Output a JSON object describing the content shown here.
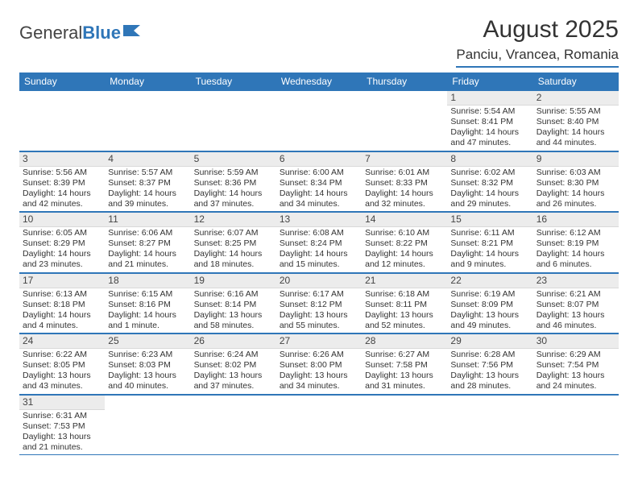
{
  "brand": {
    "part1": "General",
    "part2": "Blue"
  },
  "title": "August 2025",
  "location": "Panciu, Vrancea, Romania",
  "colors": {
    "accent": "#2f76b8",
    "daynum_bg": "#ececec",
    "text": "#333333"
  },
  "dow": [
    "Sunday",
    "Monday",
    "Tuesday",
    "Wednesday",
    "Thursday",
    "Friday",
    "Saturday"
  ],
  "weeks": [
    [
      null,
      null,
      null,
      null,
      null,
      {
        "n": "1",
        "sr": "Sunrise: 5:54 AM",
        "ss": "Sunset: 8:41 PM",
        "d1": "Daylight: 14 hours",
        "d2": "and 47 minutes."
      },
      {
        "n": "2",
        "sr": "Sunrise: 5:55 AM",
        "ss": "Sunset: 8:40 PM",
        "d1": "Daylight: 14 hours",
        "d2": "and 44 minutes."
      }
    ],
    [
      {
        "n": "3",
        "sr": "Sunrise: 5:56 AM",
        "ss": "Sunset: 8:39 PM",
        "d1": "Daylight: 14 hours",
        "d2": "and 42 minutes."
      },
      {
        "n": "4",
        "sr": "Sunrise: 5:57 AM",
        "ss": "Sunset: 8:37 PM",
        "d1": "Daylight: 14 hours",
        "d2": "and 39 minutes."
      },
      {
        "n": "5",
        "sr": "Sunrise: 5:59 AM",
        "ss": "Sunset: 8:36 PM",
        "d1": "Daylight: 14 hours",
        "d2": "and 37 minutes."
      },
      {
        "n": "6",
        "sr": "Sunrise: 6:00 AM",
        "ss": "Sunset: 8:34 PM",
        "d1": "Daylight: 14 hours",
        "d2": "and 34 minutes."
      },
      {
        "n": "7",
        "sr": "Sunrise: 6:01 AM",
        "ss": "Sunset: 8:33 PM",
        "d1": "Daylight: 14 hours",
        "d2": "and 32 minutes."
      },
      {
        "n": "8",
        "sr": "Sunrise: 6:02 AM",
        "ss": "Sunset: 8:32 PM",
        "d1": "Daylight: 14 hours",
        "d2": "and 29 minutes."
      },
      {
        "n": "9",
        "sr": "Sunrise: 6:03 AM",
        "ss": "Sunset: 8:30 PM",
        "d1": "Daylight: 14 hours",
        "d2": "and 26 minutes."
      }
    ],
    [
      {
        "n": "10",
        "sr": "Sunrise: 6:05 AM",
        "ss": "Sunset: 8:29 PM",
        "d1": "Daylight: 14 hours",
        "d2": "and 23 minutes."
      },
      {
        "n": "11",
        "sr": "Sunrise: 6:06 AM",
        "ss": "Sunset: 8:27 PM",
        "d1": "Daylight: 14 hours",
        "d2": "and 21 minutes."
      },
      {
        "n": "12",
        "sr": "Sunrise: 6:07 AM",
        "ss": "Sunset: 8:25 PM",
        "d1": "Daylight: 14 hours",
        "d2": "and 18 minutes."
      },
      {
        "n": "13",
        "sr": "Sunrise: 6:08 AM",
        "ss": "Sunset: 8:24 PM",
        "d1": "Daylight: 14 hours",
        "d2": "and 15 minutes."
      },
      {
        "n": "14",
        "sr": "Sunrise: 6:10 AM",
        "ss": "Sunset: 8:22 PM",
        "d1": "Daylight: 14 hours",
        "d2": "and 12 minutes."
      },
      {
        "n": "15",
        "sr": "Sunrise: 6:11 AM",
        "ss": "Sunset: 8:21 PM",
        "d1": "Daylight: 14 hours",
        "d2": "and 9 minutes."
      },
      {
        "n": "16",
        "sr": "Sunrise: 6:12 AM",
        "ss": "Sunset: 8:19 PM",
        "d1": "Daylight: 14 hours",
        "d2": "and 6 minutes."
      }
    ],
    [
      {
        "n": "17",
        "sr": "Sunrise: 6:13 AM",
        "ss": "Sunset: 8:18 PM",
        "d1": "Daylight: 14 hours",
        "d2": "and 4 minutes."
      },
      {
        "n": "18",
        "sr": "Sunrise: 6:15 AM",
        "ss": "Sunset: 8:16 PM",
        "d1": "Daylight: 14 hours",
        "d2": "and 1 minute."
      },
      {
        "n": "19",
        "sr": "Sunrise: 6:16 AM",
        "ss": "Sunset: 8:14 PM",
        "d1": "Daylight: 13 hours",
        "d2": "and 58 minutes."
      },
      {
        "n": "20",
        "sr": "Sunrise: 6:17 AM",
        "ss": "Sunset: 8:12 PM",
        "d1": "Daylight: 13 hours",
        "d2": "and 55 minutes."
      },
      {
        "n": "21",
        "sr": "Sunrise: 6:18 AM",
        "ss": "Sunset: 8:11 PM",
        "d1": "Daylight: 13 hours",
        "d2": "and 52 minutes."
      },
      {
        "n": "22",
        "sr": "Sunrise: 6:19 AM",
        "ss": "Sunset: 8:09 PM",
        "d1": "Daylight: 13 hours",
        "d2": "and 49 minutes."
      },
      {
        "n": "23",
        "sr": "Sunrise: 6:21 AM",
        "ss": "Sunset: 8:07 PM",
        "d1": "Daylight: 13 hours",
        "d2": "and 46 minutes."
      }
    ],
    [
      {
        "n": "24",
        "sr": "Sunrise: 6:22 AM",
        "ss": "Sunset: 8:05 PM",
        "d1": "Daylight: 13 hours",
        "d2": "and 43 minutes."
      },
      {
        "n": "25",
        "sr": "Sunrise: 6:23 AM",
        "ss": "Sunset: 8:03 PM",
        "d1": "Daylight: 13 hours",
        "d2": "and 40 minutes."
      },
      {
        "n": "26",
        "sr": "Sunrise: 6:24 AM",
        "ss": "Sunset: 8:02 PM",
        "d1": "Daylight: 13 hours",
        "d2": "and 37 minutes."
      },
      {
        "n": "27",
        "sr": "Sunrise: 6:26 AM",
        "ss": "Sunset: 8:00 PM",
        "d1": "Daylight: 13 hours",
        "d2": "and 34 minutes."
      },
      {
        "n": "28",
        "sr": "Sunrise: 6:27 AM",
        "ss": "Sunset: 7:58 PM",
        "d1": "Daylight: 13 hours",
        "d2": "and 31 minutes."
      },
      {
        "n": "29",
        "sr": "Sunrise: 6:28 AM",
        "ss": "Sunset: 7:56 PM",
        "d1": "Daylight: 13 hours",
        "d2": "and 28 minutes."
      },
      {
        "n": "30",
        "sr": "Sunrise: 6:29 AM",
        "ss": "Sunset: 7:54 PM",
        "d1": "Daylight: 13 hours",
        "d2": "and 24 minutes."
      }
    ],
    [
      {
        "n": "31",
        "sr": "Sunrise: 6:31 AM",
        "ss": "Sunset: 7:53 PM",
        "d1": "Daylight: 13 hours",
        "d2": "and 21 minutes."
      },
      null,
      null,
      null,
      null,
      null,
      null
    ]
  ]
}
